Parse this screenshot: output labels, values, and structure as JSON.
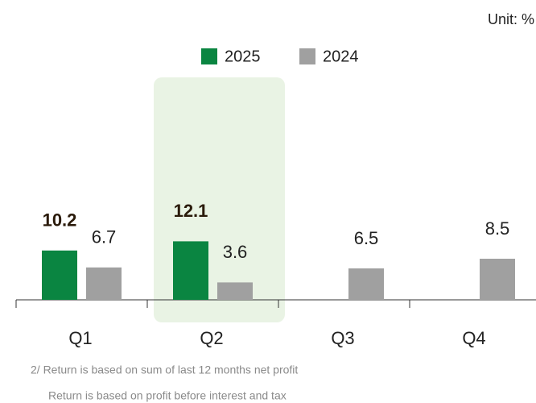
{
  "chart_data": {
    "type": "bar",
    "unit": "Unit: %",
    "categories": [
      "Q1",
      "Q2",
      "Q3",
      "Q4"
    ],
    "series": [
      {
        "name": "2025",
        "color": "#0a8541",
        "values": [
          10.2,
          12.1,
          null,
          null
        ]
      },
      {
        "name": "2024",
        "color": "#a0a0a0",
        "values": [
          6.7,
          3.6,
          6.5,
          8.5
        ]
      }
    ],
    "ylim": [
      0,
      50
    ],
    "highlight": "Q2",
    "highlight_color": "#e9f3e4",
    "footnotes": [
      "2/ Return is based on sum of last 12 months net profit",
      "Return is based on profit before interest and tax"
    ]
  }
}
